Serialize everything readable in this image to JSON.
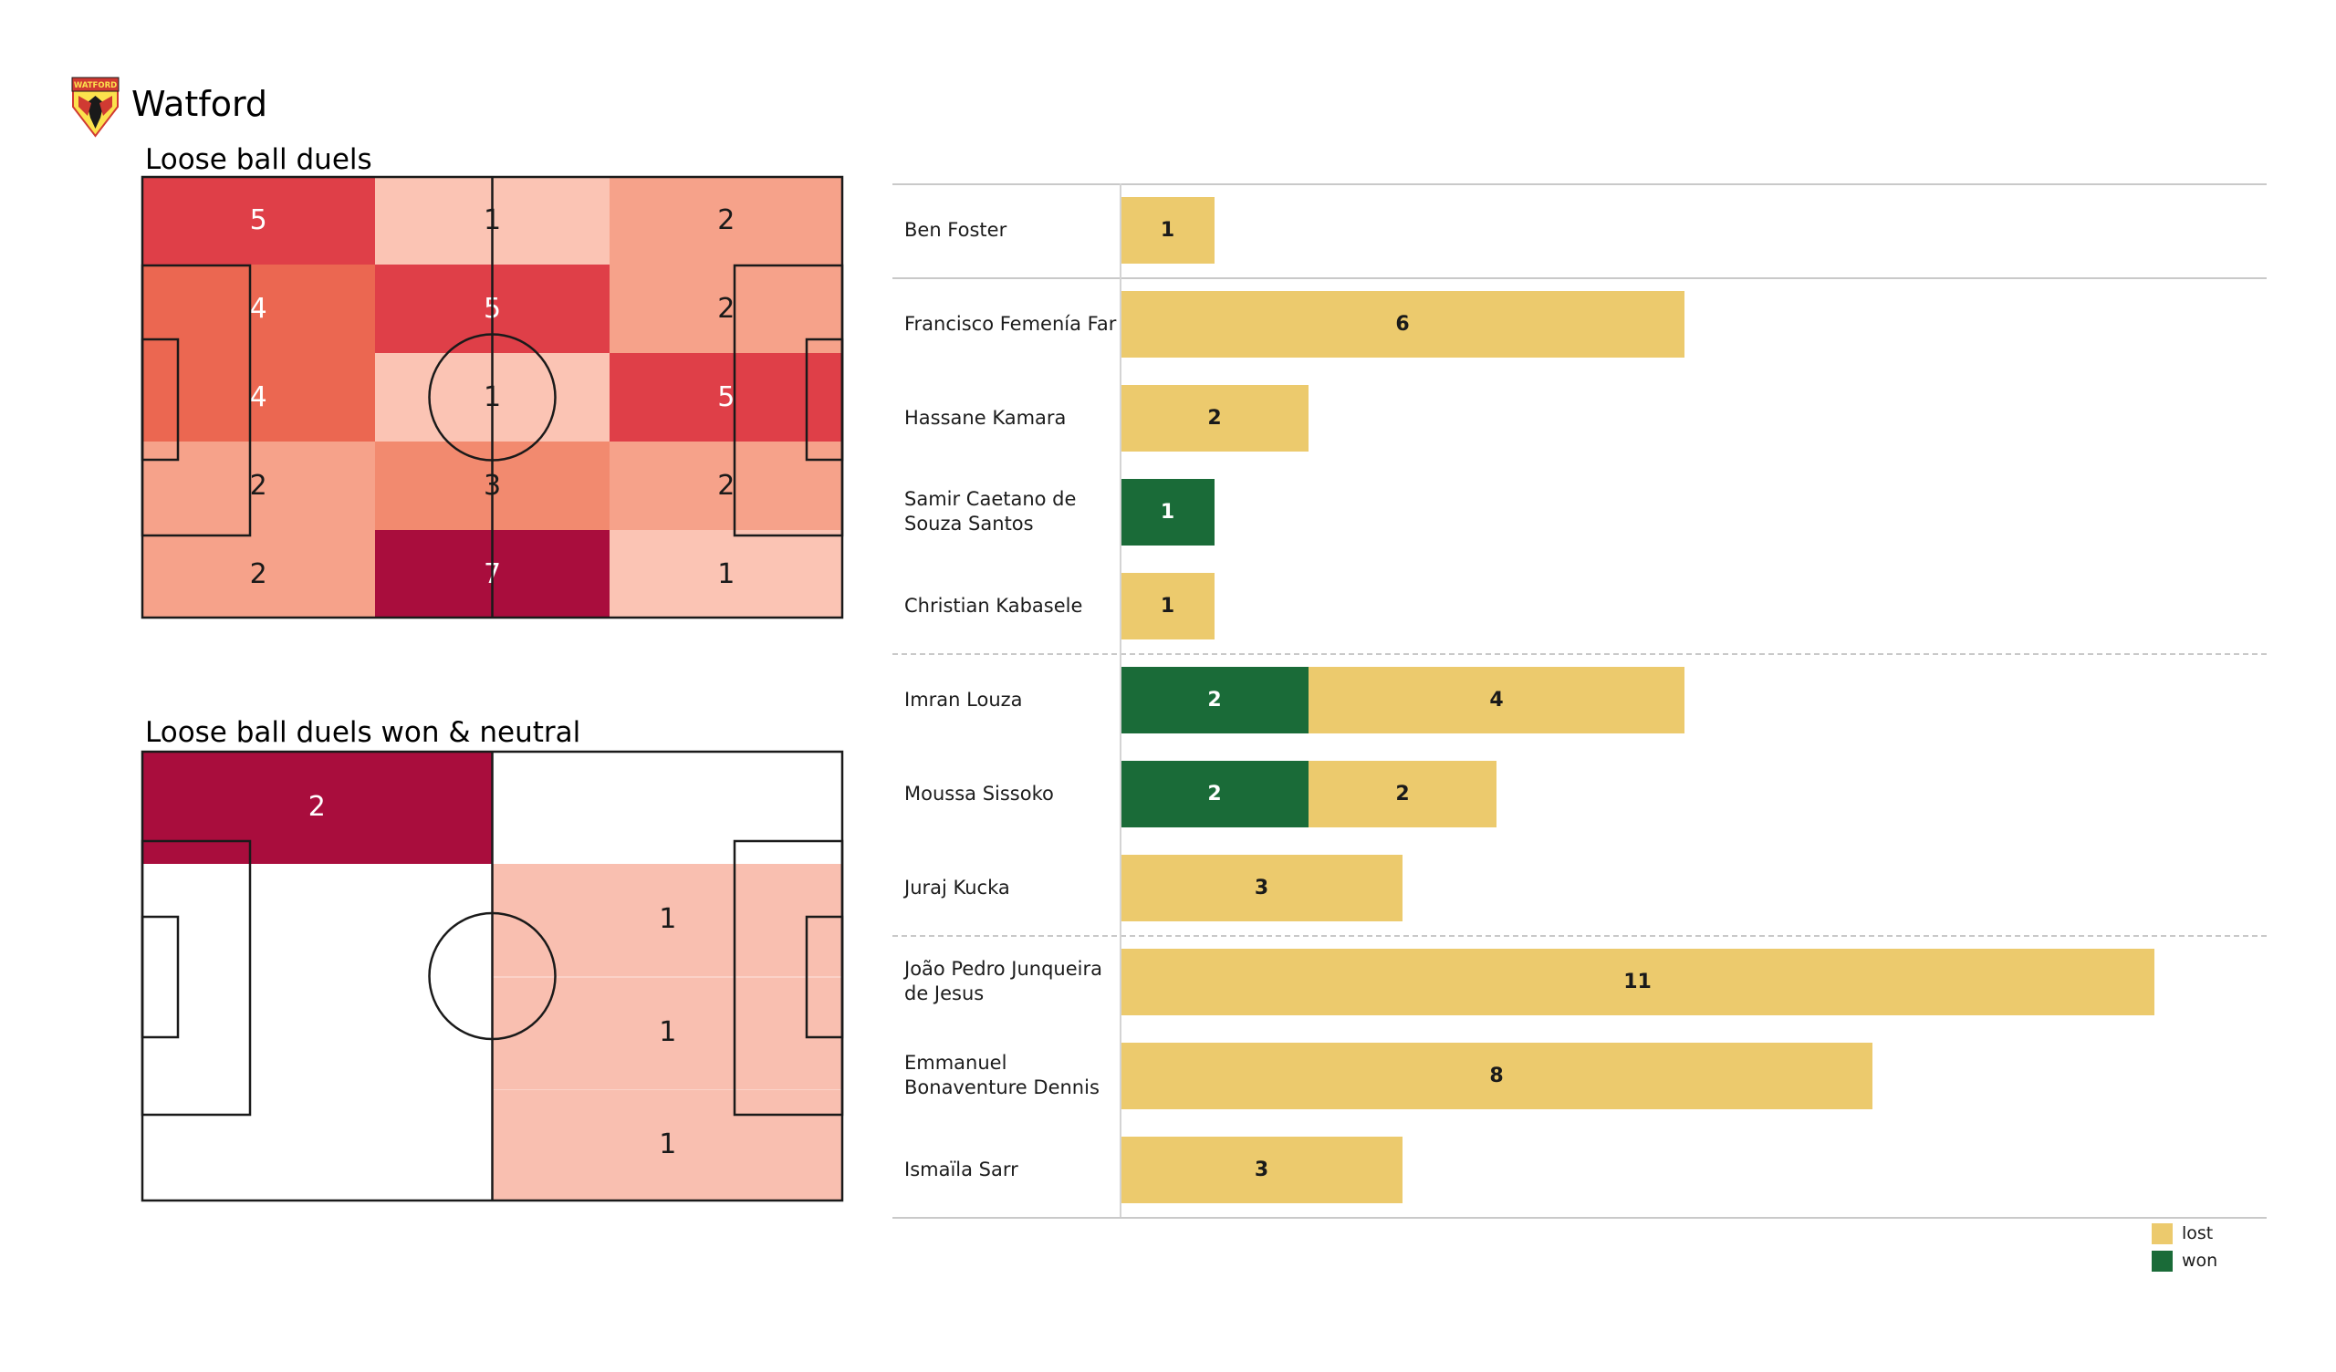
{
  "header": {
    "team": "Watford",
    "badge_text": "WATFORD"
  },
  "colors": {
    "pitch_line": "#1a1a1a",
    "separator": "#c9c9c9",
    "axis_line": "#d4d4d4",
    "lost": "#ecca6d",
    "won": "#1a6b38",
    "heat": {
      "1": "#fbc4b4",
      "2": "#f6a28a",
      "3": "#f28a6f",
      "4": "#eb6751",
      "5": "#df3f48",
      "7": "#a90d3d"
    },
    "heat_text": {
      "1": "#1a1a1a",
      "2": "#1a1a1a",
      "3": "#1a1a1a",
      "4": "#ffffff",
      "5": "#ffffff",
      "7": "#ffffff"
    },
    "zone_max": "#a90d3d",
    "zone_min": "#f9bfb0"
  },
  "legend": {
    "items": [
      {
        "key": "lost",
        "label": "lost",
        "color": "#ecca6d"
      },
      {
        "key": "won",
        "label": "won",
        "color": "#1a6b38"
      }
    ]
  },
  "chart_data": [
    {
      "type": "heatmap",
      "title": "Loose ball duels",
      "grid": {
        "rows": 5,
        "cols": 3
      },
      "values": [
        [
          5,
          1,
          2
        ],
        [
          4,
          5,
          2
        ],
        [
          4,
          1,
          5
        ],
        [
          2,
          3,
          2
        ],
        [
          2,
          7,
          1
        ]
      ]
    },
    {
      "type": "heatmap-zones",
      "title": "Loose ball duels won & neutral",
      "zones": [
        {
          "value": 2,
          "x": 0.0,
          "y": 0.0,
          "w": 0.5,
          "h": 0.25,
          "color": "#a90d3d",
          "text_color": "#ffffff",
          "label_x": 0.25,
          "label_y": 0.125
        },
        {
          "value": null,
          "x": 0.5,
          "y": 0.25,
          "w": 0.5,
          "h": 0.75,
          "color": "#f9bfb0"
        }
      ],
      "labels": [
        {
          "value": 1,
          "x": 0.75,
          "y": 0.375,
          "color": "#1a1a1a"
        },
        {
          "value": 1,
          "x": 0.75,
          "y": 0.625,
          "color": "#1a1a1a"
        },
        {
          "value": 1,
          "x": 0.75,
          "y": 0.875,
          "color": "#1a1a1a"
        }
      ]
    },
    {
      "type": "stacked_bar",
      "series": [
        "won",
        "lost"
      ],
      "rows": [
        {
          "name": [
            "Ben Foster"
          ],
          "won": 0,
          "lost": 1
        },
        {
          "name": [
            "Francisco Femenía Far"
          ],
          "won": 0,
          "lost": 6
        },
        {
          "name": [
            "Hassane Kamara"
          ],
          "won": 0,
          "lost": 2
        },
        {
          "name": [
            "Samir Caetano de",
            "Souza Santos"
          ],
          "won": 1,
          "lost": 0
        },
        {
          "name": [
            "Christian Kabasele"
          ],
          "won": 0,
          "lost": 1
        },
        {
          "name": [
            "Imran Louza"
          ],
          "won": 2,
          "lost": 4
        },
        {
          "name": [
            "Moussa Sissoko"
          ],
          "won": 2,
          "lost": 2
        },
        {
          "name": [
            "Juraj Kucka"
          ],
          "won": 0,
          "lost": 3
        },
        {
          "name": [
            "João Pedro Junqueira",
            "de Jesus"
          ],
          "won": 0,
          "lost": 11
        },
        {
          "name": [
            "Emmanuel",
            "Bonaventure Dennis"
          ],
          "won": 0,
          "lost": 8
        },
        {
          "name": [
            "Ismaïla Sarr"
          ],
          "won": 0,
          "lost": 3
        }
      ],
      "separators": [
        {
          "after": -1,
          "style": "solid"
        },
        {
          "after": 0,
          "style": "solid"
        },
        {
          "after": 4,
          "style": "dashed"
        },
        {
          "after": 7,
          "style": "dashed"
        },
        {
          "after": 10,
          "style": "solid"
        }
      ]
    }
  ]
}
